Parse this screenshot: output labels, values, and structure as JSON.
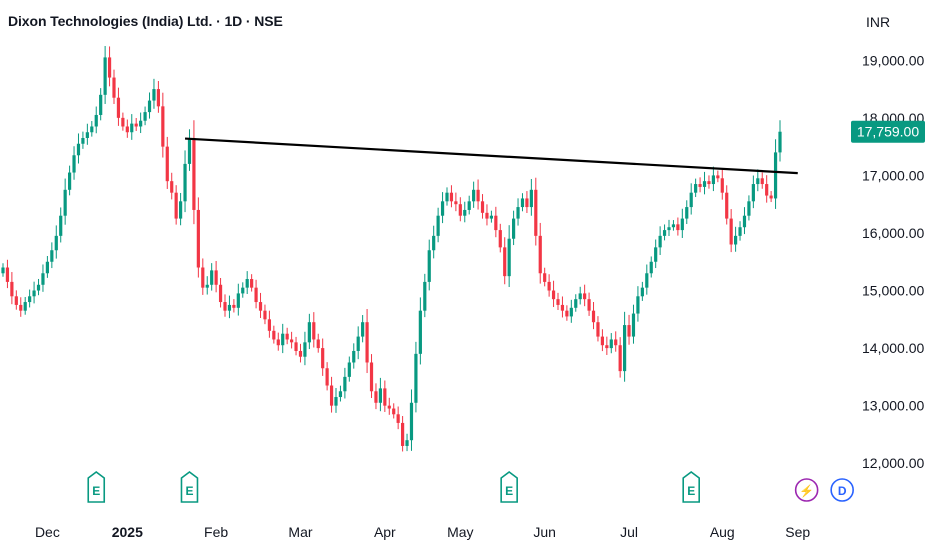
{
  "header": {
    "title": "Dixon Technologies (India) Ltd. · 1D · NSE",
    "currency": "INR"
  },
  "colors": {
    "up": "#089981",
    "down": "#f23645",
    "price_tag": "#089981",
    "trendline": "#000000",
    "dividend": "#2962ff",
    "split": "#9c27b0"
  },
  "chart_data": {
    "type": "candlestick",
    "title": "Dixon Technologies (India) Ltd. · 1D · NSE",
    "ylim": [
      11500,
      19700
    ],
    "y_ticks": [
      {
        "value": 19000,
        "label": "19,000.00"
      },
      {
        "value": 18000,
        "label": "18,000.00"
      },
      {
        "value": 17000,
        "label": "17,000.00"
      },
      {
        "value": 16000,
        "label": "16,000.00"
      },
      {
        "value": 15000,
        "label": "15,000.00"
      },
      {
        "value": 14000,
        "label": "14,000.00"
      },
      {
        "value": 13000,
        "label": "13,000.00"
      },
      {
        "value": 12000,
        "label": "12,000.00"
      }
    ],
    "x_ticks": [
      {
        "index": 10,
        "label": "Dec",
        "bold": false
      },
      {
        "index": 28,
        "label": "2025",
        "bold": true
      },
      {
        "index": 48,
        "label": "Feb",
        "bold": false
      },
      {
        "index": 67,
        "label": "Mar",
        "bold": false
      },
      {
        "index": 86,
        "label": "Apr",
        "bold": false
      },
      {
        "index": 103,
        "label": "May",
        "bold": false
      },
      {
        "index": 122,
        "label": "Jun",
        "bold": false
      },
      {
        "index": 141,
        "label": "Jul",
        "bold": false
      },
      {
        "index": 162,
        "label": "Aug",
        "bold": false
      },
      {
        "index": 179,
        "label": "Sep",
        "bold": false
      }
    ],
    "last_price": {
      "value": 17759,
      "label": "17,759.00"
    },
    "trendline": {
      "start_index": 41,
      "start_value": 17640,
      "end_index": 179,
      "end_value": 17040
    },
    "events": [
      {
        "index": 21,
        "type": "earnings",
        "label": "E"
      },
      {
        "index": 42,
        "type": "earnings",
        "label": "E"
      },
      {
        "index": 114,
        "type": "earnings",
        "label": "E"
      },
      {
        "index": 155,
        "type": "earnings",
        "label": "E"
      },
      {
        "index": 181,
        "type": "split",
        "label": "⚡"
      },
      {
        "index": 189,
        "type": "dividend",
        "label": "D"
      }
    ],
    "close": [
      15400,
      15150,
      14900,
      14750,
      14650,
      14800,
      14900,
      15000,
      15100,
      15300,
      15500,
      15700,
      15950,
      16300,
      16750,
      17050,
      17350,
      17550,
      17650,
      17750,
      17850,
      18050,
      18400,
      19050,
      18700,
      18350,
      18000,
      17850,
      17750,
      17900,
      17850,
      17950,
      18100,
      18300,
      18500,
      18200,
      17500,
      16900,
      16700,
      16250,
      16550,
      17200,
      17650,
      16400,
      15400,
      15050,
      15100,
      15350,
      15100,
      14800,
      14650,
      14750,
      14700,
      14950,
      15050,
      15200,
      15050,
      14800,
      14650,
      14500,
      14300,
      14150,
      14050,
      14250,
      14150,
      14100,
      13950,
      13850,
      14100,
      14450,
      14150,
      14000,
      13650,
      13350,
      13000,
      13150,
      13250,
      13500,
      13750,
      13950,
      14200,
      14450,
      13750,
      13250,
      13050,
      13300,
      13000,
      12950,
      12850,
      12700,
      12300,
      12400,
      13050,
      13900,
      14650,
      15150,
      15700,
      15950,
      16300,
      16550,
      16700,
      16550,
      16500,
      16300,
      16400,
      16550,
      16750,
      16550,
      16350,
      16250,
      16300,
      16050,
      15750,
      15250,
      15900,
      16250,
      16450,
      16600,
      16450,
      16750,
      15950,
      15300,
      15150,
      15000,
      14850,
      14750,
      14650,
      14550,
      14700,
      14850,
      14950,
      14850,
      14650,
      14450,
      14200,
      14050,
      14000,
      14150,
      14050,
      13600,
      14400,
      14200,
      14600,
      14900,
      15050,
      15300,
      15500,
      15750,
      15950,
      16050,
      16100,
      16150,
      16050,
      16250,
      16450,
      16700,
      16850,
      16800,
      16900,
      16850,
      17000,
      16950,
      16700,
      16250,
      15800,
      15950,
      16100,
      16300,
      16550,
      16850,
      16950,
      16850,
      16650,
      16600,
      17400,
      17759
    ],
    "x_label": "",
    "y_label": ""
  }
}
